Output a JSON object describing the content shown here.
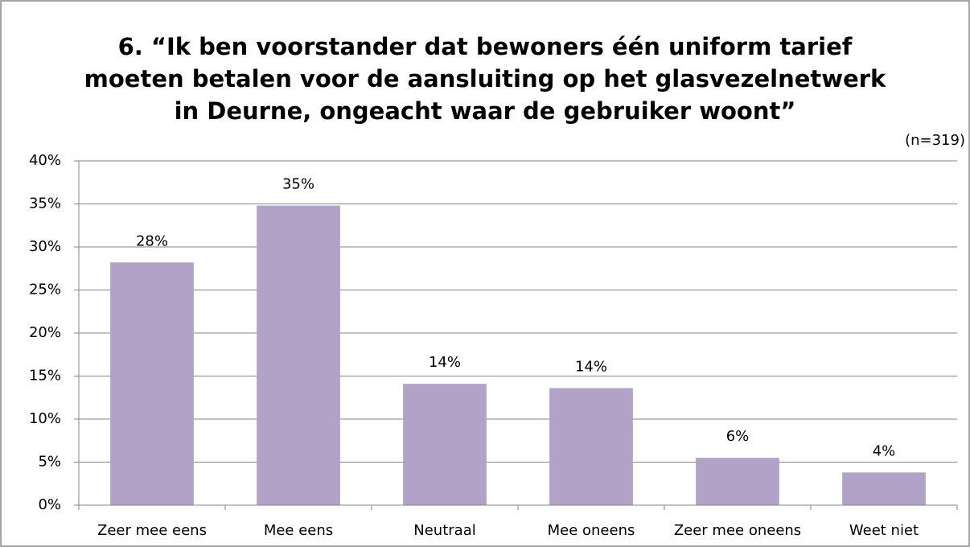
{
  "chart_data": {
    "type": "bar",
    "title": [
      "6. “Ik ben voorstander dat bewoners één uniform tarief",
      "moeten betalen voor de aansluiting op het glasvezelnetwerk",
      "in Deurne, ongeacht waar de gebruiker woont”"
    ],
    "annotation": "(n=319)",
    "categories": [
      "Zeer mee eens",
      "Mee eens",
      "Neutraal",
      "Mee oneens",
      "Zeer mee oneens",
      "Weet niet"
    ],
    "values": [
      28.2,
      34.8,
      14.1,
      13.6,
      5.5,
      3.8
    ],
    "value_labels": [
      "28%",
      "35%",
      "14%",
      "14%",
      "6%",
      "4%"
    ],
    "color": "#b3a2c7",
    "ylim": [
      0,
      40
    ],
    "yticks": [
      {
        "value": 0,
        "label": "0%"
      },
      {
        "value": 5,
        "label": "5%"
      },
      {
        "value": 10,
        "label": "10%"
      },
      {
        "value": 15,
        "label": "15%"
      },
      {
        "value": 20,
        "label": "20%"
      },
      {
        "value": 25,
        "label": "25%"
      },
      {
        "value": 30,
        "label": "30%"
      },
      {
        "value": 35,
        "label": "35%"
      },
      {
        "value": 40,
        "label": "40%"
      }
    ],
    "grid": true
  }
}
